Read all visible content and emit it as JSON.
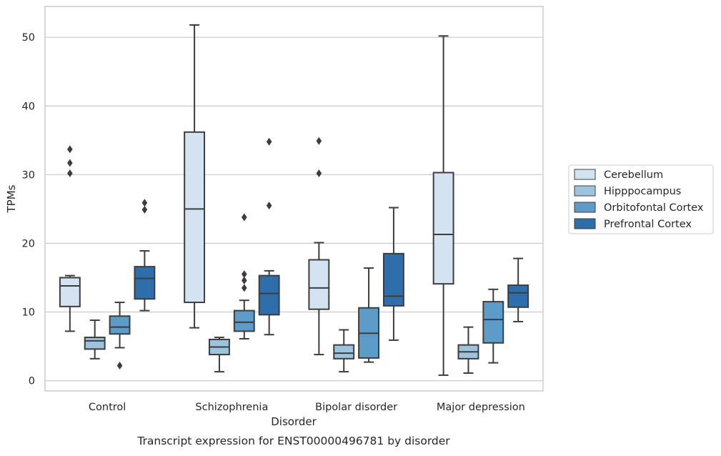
{
  "chart_data": {
    "type": "boxplot",
    "caption": "Transcript expression for ENST00000496781 by disorder",
    "xlabel": "Disorder",
    "ylabel": "TPMs",
    "ylim": [
      -1.5,
      54.5
    ],
    "yticks": [
      0,
      10,
      20,
      30,
      40,
      50
    ],
    "grid": true,
    "legend_position": "right",
    "categories": [
      "Control",
      "Schizophrenia",
      "Bipolar disorder",
      "Major depression"
    ],
    "series": [
      {
        "name": "Cerebellum",
        "color": "#d4e3f2",
        "boxes": [
          {
            "whisker_low": 7.2,
            "q1": 10.8,
            "median": 13.8,
            "q3": 15.0,
            "whisker_high": 15.3,
            "outliers": [
              30.2,
              31.7,
              33.7
            ]
          },
          {
            "whisker_low": 7.7,
            "q1": 11.4,
            "median": 25.0,
            "q3": 36.2,
            "whisker_high": 51.8,
            "outliers": []
          },
          {
            "whisker_low": 3.8,
            "q1": 10.4,
            "median": 13.5,
            "q3": 17.6,
            "whisker_high": 20.1,
            "outliers": [
              30.2,
              34.9
            ]
          },
          {
            "whisker_low": 0.8,
            "q1": 14.1,
            "median": 21.3,
            "q3": 30.3,
            "whisker_high": 50.2,
            "outliers": []
          }
        ]
      },
      {
        "name": "Hipppocampus",
        "color": "#9dc3de",
        "boxes": [
          {
            "whisker_low": 3.2,
            "q1": 4.6,
            "median": 5.8,
            "q3": 6.3,
            "whisker_high": 8.8,
            "outliers": []
          },
          {
            "whisker_low": 1.3,
            "q1": 3.8,
            "median": 4.9,
            "q3": 6.0,
            "whisker_high": 6.3,
            "outliers": []
          },
          {
            "whisker_low": 1.3,
            "q1": 3.2,
            "median": 4.0,
            "q3": 5.2,
            "whisker_high": 7.4,
            "outliers": []
          },
          {
            "whisker_low": 1.1,
            "q1": 3.2,
            "median": 4.2,
            "q3": 5.2,
            "whisker_high": 7.8,
            "outliers": []
          }
        ]
      },
      {
        "name": "Orbitofontal Cortex",
        "color": "#5d9cc9",
        "boxes": [
          {
            "whisker_low": 4.8,
            "q1": 6.8,
            "median": 7.8,
            "q3": 9.4,
            "whisker_high": 11.4,
            "outliers": [
              2.2
            ]
          },
          {
            "whisker_low": 6.1,
            "q1": 7.2,
            "median": 8.5,
            "q3": 10.2,
            "whisker_high": 11.7,
            "outliers": [
              13.5,
              14.6,
              15.5,
              23.8
            ]
          },
          {
            "whisker_low": 2.7,
            "q1": 3.3,
            "median": 6.9,
            "q3": 10.6,
            "whisker_high": 16.4,
            "outliers": []
          },
          {
            "whisker_low": 2.6,
            "q1": 5.5,
            "median": 8.9,
            "q3": 11.5,
            "whisker_high": 13.3,
            "outliers": []
          }
        ]
      },
      {
        "name": "Prefrontal Cortex",
        "color": "#2e6eaa",
        "boxes": [
          {
            "whisker_low": 10.2,
            "q1": 11.9,
            "median": 14.9,
            "q3": 16.6,
            "whisker_high": 18.9,
            "outliers": [
              24.9,
              25.9
            ]
          },
          {
            "whisker_low": 6.7,
            "q1": 9.6,
            "median": 12.7,
            "q3": 15.3,
            "whisker_high": 16.0,
            "outliers": [
              25.5,
              34.8
            ]
          },
          {
            "whisker_low": 5.9,
            "q1": 10.9,
            "median": 12.3,
            "q3": 18.5,
            "whisker_high": 25.2,
            "outliers": []
          },
          {
            "whisker_low": 8.6,
            "q1": 10.7,
            "median": 12.8,
            "q3": 13.9,
            "whisker_high": 17.8,
            "outliers": []
          }
        ]
      }
    ]
  }
}
